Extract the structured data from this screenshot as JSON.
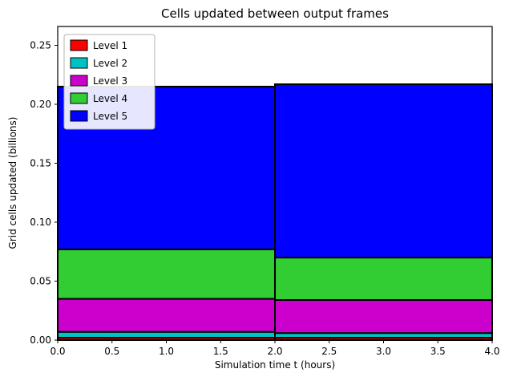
{
  "chart_data": {
    "type": "bar",
    "stacked": true,
    "title": "Cells updated between output frames",
    "xlabel": "Simulation time t (hours)",
    "ylabel": "Grid cells updated (billions)",
    "xlim": [
      0,
      4
    ],
    "ylim": [
      0,
      0.266
    ],
    "x_edges": [
      0,
      2,
      4
    ],
    "series": [
      {
        "name": "Level 1",
        "color": "#ff0000",
        "values": [
          0.002,
          0.002
        ]
      },
      {
        "name": "Level 2",
        "color": "#00c2c2",
        "values": [
          0.005,
          0.004
        ]
      },
      {
        "name": "Level 3",
        "color": "#cc00cc",
        "values": [
          0.028,
          0.028
        ]
      },
      {
        "name": "Level 4",
        "color": "#32cd32",
        "values": [
          0.042,
          0.036
        ]
      },
      {
        "name": "Level 5",
        "color": "#0000ff",
        "values": [
          0.138,
          0.147
        ]
      }
    ],
    "xticks": [
      0,
      0.5,
      1,
      1.5,
      2,
      2.5,
      3,
      3.5,
      4
    ],
    "xtick_labels": [
      "0.0",
      "0.5",
      "1.0",
      "1.5",
      "2.0",
      "2.5",
      "3.0",
      "3.5",
      "4.0"
    ],
    "yticks": [
      0,
      0.05,
      0.1,
      0.15,
      0.2,
      0.25
    ],
    "ytick_labels": [
      "0.00",
      "0.05",
      "0.10",
      "0.15",
      "0.20",
      "0.25"
    ],
    "legend_position": "upper left",
    "grid": false,
    "bar_edge_color": "#000000",
    "axes_frame_color": "#000000",
    "legend_border_color": "#b3b3b3"
  }
}
